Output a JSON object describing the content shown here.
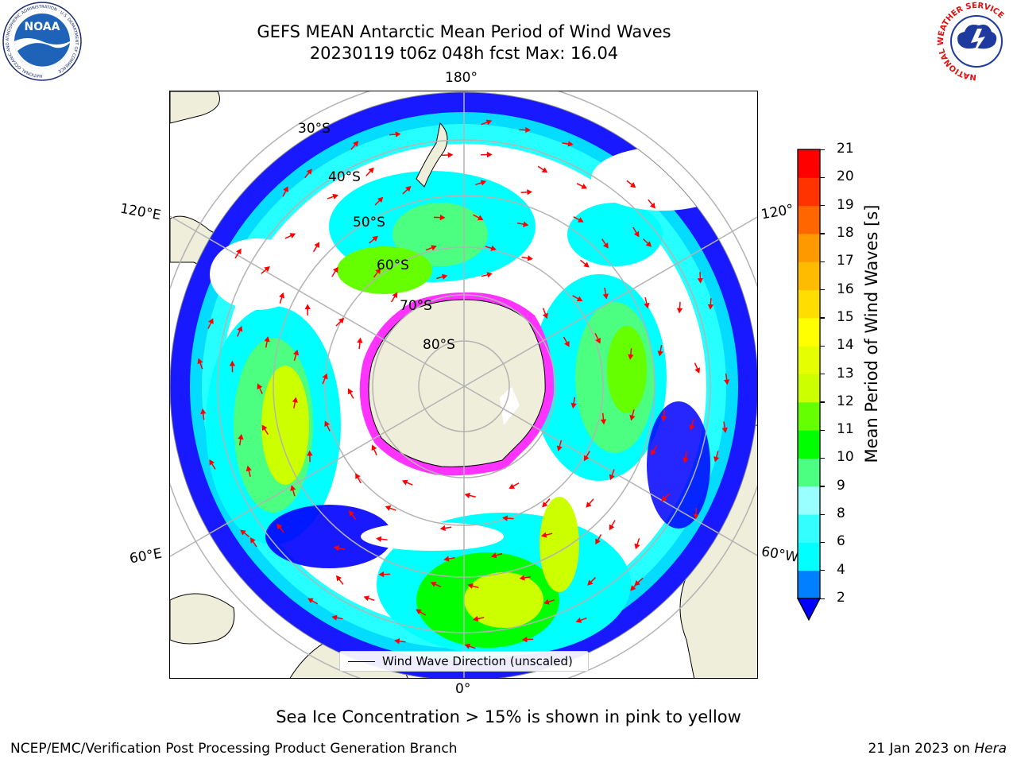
{
  "title": {
    "line1": "GEFS MEAN Antarctic Mean Period of Wind Waves",
    "line2": "20230119 t06z 048h fcst   Max: 16.04"
  },
  "map": {
    "projection": "south-polar-stereographic",
    "longitude_labels": {
      "top": "180°",
      "left_upper": "120°E",
      "right_upper": "120°",
      "left_lower": "60°E",
      "right_lower": "60°W",
      "bottom": "0°"
    },
    "latitude_labels": [
      "30°S",
      "40°S",
      "50°S",
      "60°S",
      "70°S",
      "80°S"
    ],
    "colors": {
      "land": "#efeedb",
      "ocean_no_data": "#ffffff",
      "grid": "#b3b3b3",
      "arrows": "#ff0000",
      "sea_ice": "#ff33ff"
    },
    "legend_label": "Wind Wave Direction (unscaled)"
  },
  "colorbar": {
    "label": "Mean Period of Wind Waves [s]",
    "ticks": [
      "2",
      "4",
      "6",
      "8",
      "9",
      "10",
      "11",
      "12",
      "13",
      "14",
      "15",
      "16",
      "17",
      "18",
      "19",
      "20",
      "21"
    ],
    "colors": [
      "#0000ff",
      "#0080ff",
      "#00ffff",
      "#33ffff",
      "#99ffff",
      "#4cff80",
      "#00ff00",
      "#66ff00",
      "#ccff00",
      "#e6ff00",
      "#ffff00",
      "#ffdd00",
      "#ffbb00",
      "#ff9900",
      "#ff6600",
      "#ff3300",
      "#ff0000"
    ]
  },
  "footer": {
    "ice_note": "Sea Ice Concentration > 15% is shown in pink to yellow",
    "credit": "NCEP/EMC/Verification Post Processing Product Generation Branch",
    "date": "21 Jan 2023 on ",
    "machine": "Hera"
  },
  "logos": {
    "left": "NOAA",
    "left_ring": "NATIONAL OCEANIC AND ATMOSPHERIC ADMINISTRATION · U.S. DEPARTMENT OF COMMERCE",
    "right_ring": "NATIONAL WEATHER SERVICE"
  }
}
